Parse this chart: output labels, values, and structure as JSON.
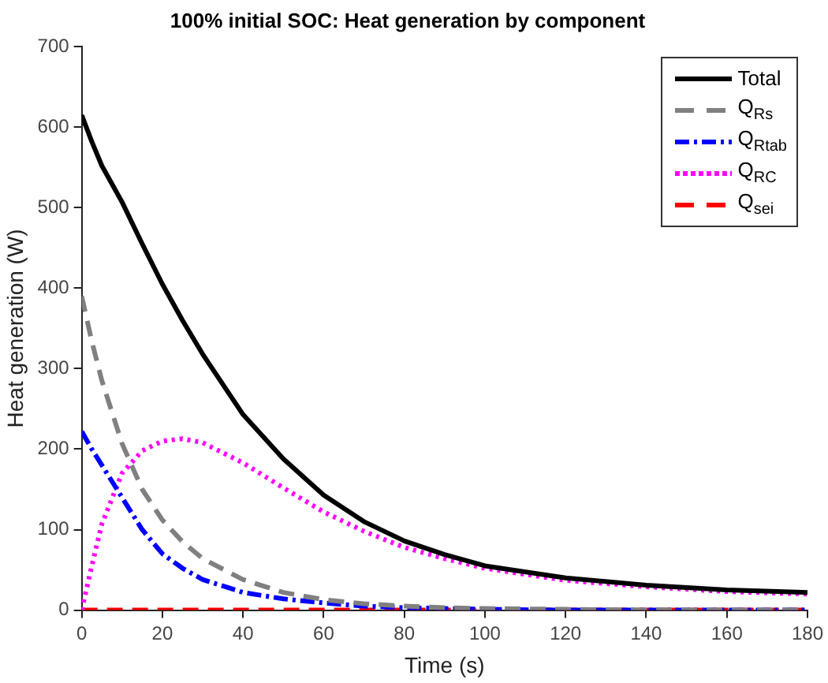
{
  "chart_data": {
    "type": "line",
    "title": "100% initial SOC: Heat generation by component",
    "xlabel": "Time (s)",
    "ylabel": "Heat generation (W)",
    "x": [
      0,
      2.5,
      5,
      10,
      15,
      20,
      25,
      30,
      40,
      50,
      60,
      70,
      80,
      90,
      100,
      120,
      140,
      160,
      180
    ],
    "xlim": [
      0,
      180
    ],
    "xticks": [
      0,
      20,
      40,
      60,
      80,
      100,
      120,
      140,
      160,
      180
    ],
    "ylim": [
      0,
      700
    ],
    "yticks": [
      0,
      100,
      200,
      300,
      400,
      500,
      600,
      700
    ],
    "grid": false,
    "legend": "top right",
    "marker": "none",
    "series": [
      {
        "name": "Total",
        "color": "#000000",
        "line_style": "solid",
        "values": [
          615,
          582,
          552,
          507,
          455,
          405,
          360,
          318,
          243,
          188,
          143,
          110,
          86,
          69,
          55,
          40,
          31,
          25,
          22
        ]
      },
      {
        "name": "Q$_{Rs}$",
        "color": "#808080",
        "line_style": "dashed",
        "values": [
          390,
          334,
          285,
          207,
          150,
          112,
          85,
          64,
          38,
          22,
          13,
          8,
          5,
          3,
          2,
          1,
          0,
          0,
          0
        ]
      },
      {
        "name": "Q$_{Rtab}$",
        "color": "#0000ff",
        "line_style": "dashdot",
        "values": [
          222,
          200,
          180,
          140,
          100,
          70,
          52,
          38,
          22,
          14,
          9,
          5,
          3,
          2,
          1,
          0,
          0,
          0,
          0
        ]
      },
      {
        "name": "Q$_{RC}$",
        "color": "#ff00ff",
        "line_style": "dotted",
        "values": [
          0,
          55,
          107,
          170,
          198,
          210,
          213,
          208,
          183,
          152,
          122,
          98,
          78,
          64,
          52,
          37,
          29,
          23,
          20
        ]
      },
      {
        "name": "Q$_{sei}$",
        "color": "#ff0000",
        "line_style": "dashed",
        "values": [
          0,
          0,
          0,
          0,
          0,
          0,
          0,
          0,
          0,
          0,
          0,
          0,
          0,
          0,
          0,
          0,
          0,
          0,
          0
        ]
      }
    ]
  }
}
